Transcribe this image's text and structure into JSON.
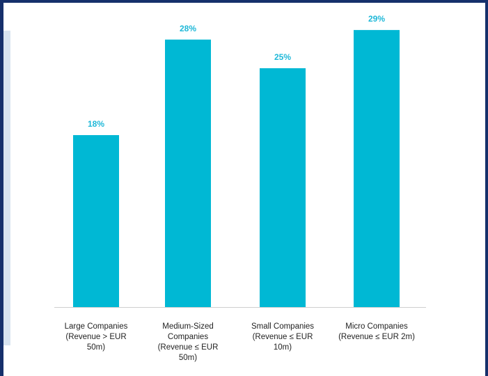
{
  "chart_data": {
    "type": "bar",
    "categories": [
      [
        "Large Companies",
        "(Revenue > EUR",
        "50m)"
      ],
      [
        "Medium-Sized",
        "Companies",
        "(Revenue ≤ EUR",
        "50m)"
      ],
      [
        "Small Companies",
        "(Revenue ≤ EUR",
        "10m)"
      ],
      [
        "Micro Companies",
        "(Revenue ≤ EUR 2m)"
      ]
    ],
    "values": [
      18,
      28,
      25,
      29
    ],
    "value_labels": [
      "18%",
      "28%",
      "25%",
      "29%"
    ],
    "title": "",
    "xlabel": "",
    "ylabel": "",
    "ylim": [
      0,
      31
    ],
    "grid": false,
    "legend": "none",
    "colors": {
      "bar": "#00b8d4",
      "value_label": "#1fb8d8",
      "axis": "#cfcfcf",
      "frame": "#16306b",
      "side_panel": "#d8e4f0"
    }
  }
}
